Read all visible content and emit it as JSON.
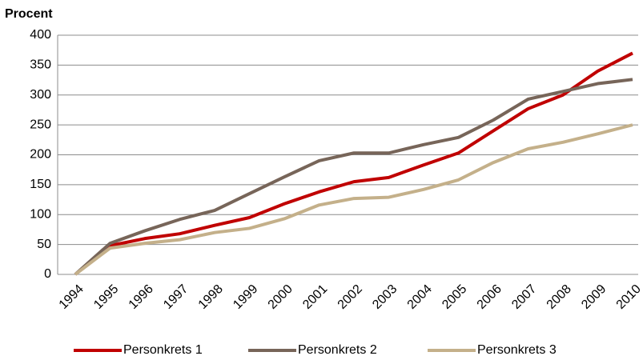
{
  "chart_data": {
    "type": "line",
    "y_axis_label": "Procent",
    "categories": [
      "1994",
      "1995",
      "1996",
      "1997",
      "1998",
      "1999",
      "2000",
      "2001",
      "2002",
      "2003",
      "2004",
      "2005",
      "2006",
      "2007",
      "2008",
      "2009",
      "2010"
    ],
    "series": [
      {
        "name": "Personkrets 1",
        "color": "#c00000",
        "values": [
          0,
          48,
          60,
          68,
          82,
          95,
          118,
          138,
          155,
          162,
          183,
          203,
          240,
          277,
          300,
          340,
          370
        ]
      },
      {
        "name": "Personkrets 2",
        "color": "#776559",
        "values": [
          0,
          52,
          73,
          92,
          107,
          135,
          163,
          190,
          203,
          203,
          217,
          229,
          258,
          293,
          306,
          319,
          326
        ]
      },
      {
        "name": "Personkrets 3",
        "color": "#c4b08a",
        "values": [
          0,
          44,
          52,
          58,
          70,
          77,
          93,
          116,
          127,
          129,
          142,
          158,
          187,
          210,
          221,
          235,
          250
        ]
      }
    ],
    "ylim": [
      0,
      400
    ],
    "yticks": [
      0,
      50,
      100,
      150,
      200,
      250,
      300,
      350,
      400
    ],
    "grid": true,
    "legend": "bottom"
  }
}
